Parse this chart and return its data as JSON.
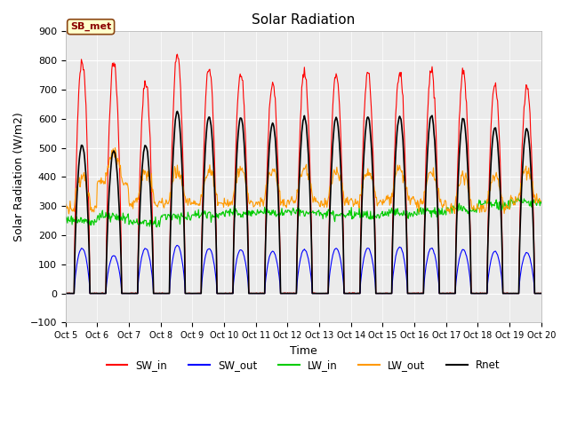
{
  "title": "Solar Radiation",
  "ylabel": "Solar Radiation (W/m2)",
  "xlabel": "Time",
  "ylim": [
    -100,
    900
  ],
  "yticks": [
    -100,
    0,
    100,
    200,
    300,
    400,
    500,
    600,
    700,
    800,
    900
  ],
  "date_start": 5,
  "num_days": 15,
  "site_label": "SB_met",
  "background_color": "#ebebeb",
  "lines": {
    "SW_in": {
      "color": "#ff0000",
      "label": "SW_in"
    },
    "SW_out": {
      "color": "#0000ff",
      "label": "SW_out"
    },
    "LW_in": {
      "color": "#00cc00",
      "label": "LW_in"
    },
    "LW_out": {
      "color": "#ff9900",
      "label": "LW_out"
    },
    "Rnet": {
      "color": "#000000",
      "label": "Rnet"
    }
  },
  "grid_color": "#ffffff",
  "title_fontsize": 11,
  "axis_label_fontsize": 9,
  "tick_fontsize": 8,
  "sw_in_peaks": [
    800,
    795,
    730,
    820,
    785,
    755,
    725,
    755,
    755,
    755,
    765,
    765,
    760,
    720,
    710
  ],
  "sw_out_peaks": [
    155,
    130,
    155,
    165,
    155,
    150,
    145,
    150,
    155,
    155,
    160,
    155,
    150,
    145,
    140
  ],
  "rnet_peaks": [
    510,
    490,
    510,
    625,
    610,
    605,
    585,
    605,
    605,
    605,
    610,
    610,
    600,
    570,
    565
  ],
  "lw_out_base": [
    310,
    400,
    330,
    330,
    330,
    330,
    330,
    340,
    330,
    330,
    340,
    330,
    310,
    310,
    340
  ],
  "lw_in_base": [
    250,
    260,
    235,
    255,
    258,
    262,
    263,
    262,
    252,
    247,
    248,
    252,
    258,
    272,
    278
  ]
}
